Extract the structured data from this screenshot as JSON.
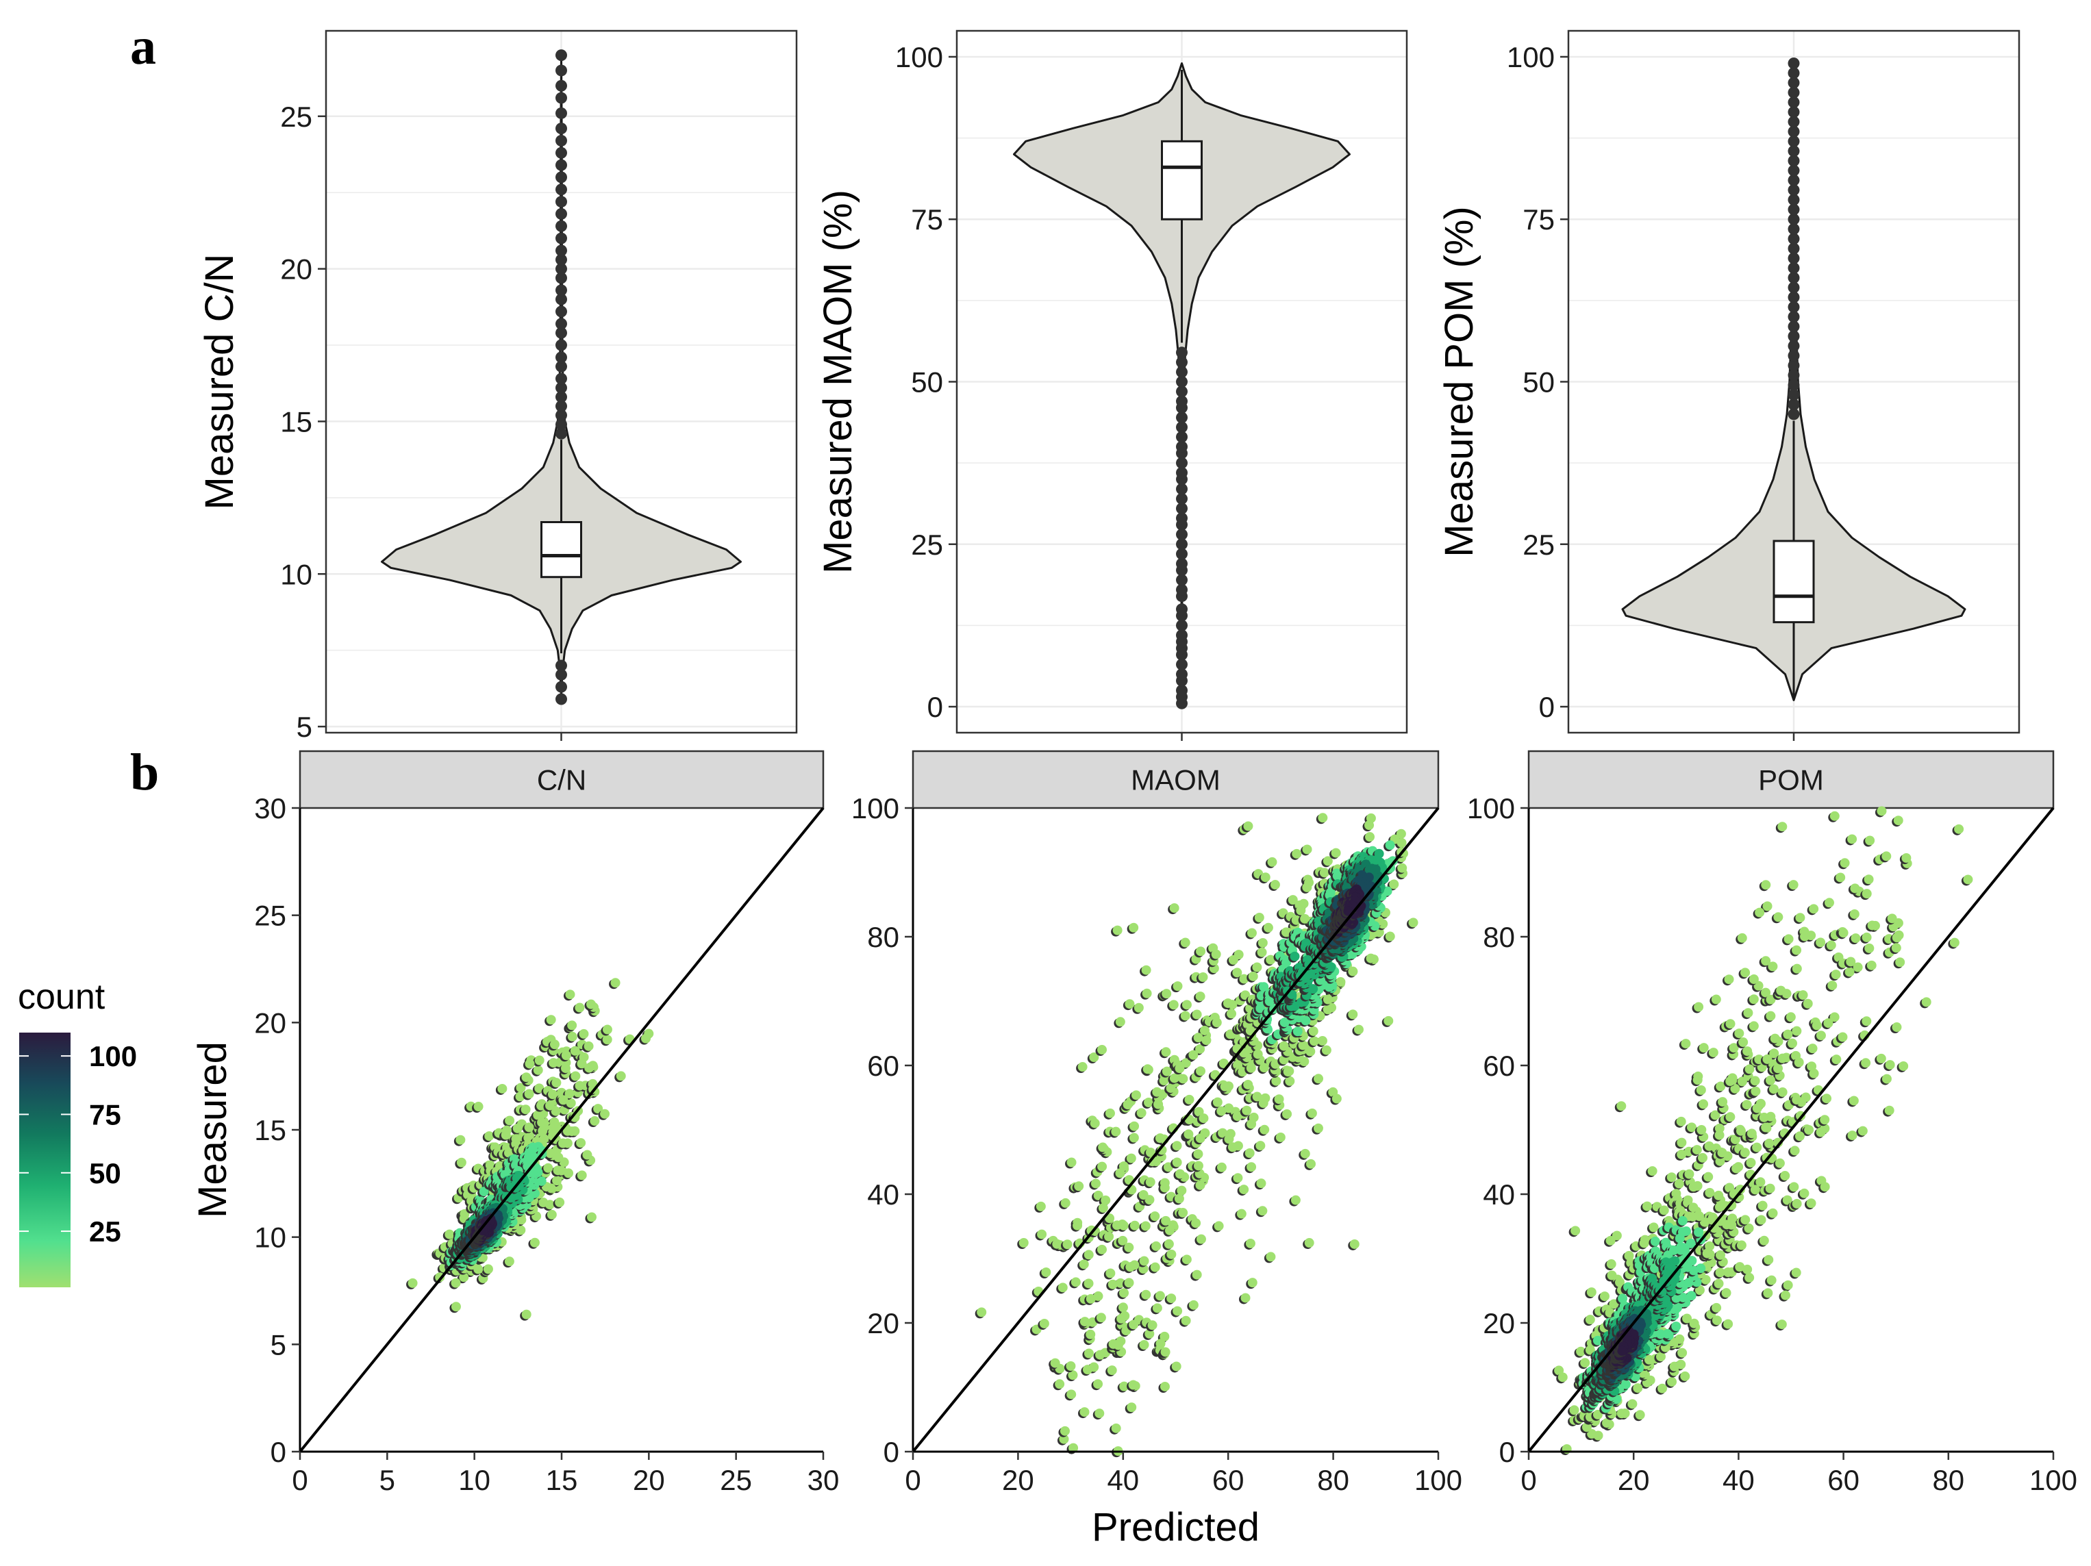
{
  "panel_labels": {
    "a": "a",
    "b": "b"
  },
  "colors": {
    "violin_fill": "#d9d9d2",
    "grid": "#ebebeb",
    "strip_fill": "#d9d9d9",
    "point": "#333333",
    "viridis_light": "#a0e070",
    "viridis_dark": "#2b1b3e"
  },
  "chart_data": [
    {
      "type": "violin",
      "title": "",
      "ylabel": "Measured C/N",
      "ylim": [
        4.8,
        27.8
      ],
      "yticks": [
        5,
        10,
        15,
        20,
        25
      ],
      "ytick_labels": [
        "5",
        "10",
        "15",
        "20",
        "25"
      ],
      "profile": [
        [
          6,
          0.0
        ],
        [
          6.8,
          0.006
        ],
        [
          7.5,
          0.02
        ],
        [
          8.2,
          0.06
        ],
        [
          8.8,
          0.12
        ],
        [
          9.3,
          0.28
        ],
        [
          9.8,
          0.62
        ],
        [
          10.2,
          0.95
        ],
        [
          10.4,
          1.0
        ],
        [
          10.8,
          0.92
        ],
        [
          11.3,
          0.7
        ],
        [
          12,
          0.42
        ],
        [
          12.8,
          0.22
        ],
        [
          13.5,
          0.1
        ],
        [
          14.3,
          0.045
        ],
        [
          15,
          0.02
        ],
        [
          16,
          0.01
        ],
        [
          17.5,
          0.006
        ],
        [
          20,
          0.004
        ],
        [
          24,
          0.003
        ],
        [
          27,
          0
        ]
      ],
      "box": {
        "q1": 9.9,
        "median": 10.6,
        "q3": 11.7,
        "whisker_low": 7.4,
        "whisker_high": 14.4
      },
      "outliers": [
        5.9,
        6.3,
        6.7,
        7.0,
        14.6,
        14.9,
        15.2,
        15.5,
        15.8,
        16.1,
        16.4,
        16.8,
        17.1,
        17.5,
        17.9,
        18.2,
        18.6,
        19.0,
        19.3,
        19.7,
        20.0,
        20.3,
        20.6,
        21.0,
        21.4,
        21.8,
        22.2,
        22.6,
        23.0,
        23.4,
        23.8,
        24.2,
        24.6,
        25.1,
        25.6,
        26.0,
        26.5,
        27.0
      ]
    },
    {
      "type": "violin",
      "title": "",
      "ylabel": "Measured MAOM (%)",
      "ylim": [
        -4,
        104
      ],
      "yticks": [
        0,
        25,
        50,
        75,
        100
      ],
      "ytick_labels": [
        "0",
        "25",
        "50",
        "75",
        "100"
      ],
      "profile": [
        [
          0,
          0
        ],
        [
          25,
          0.003
        ],
        [
          48,
          0.01
        ],
        [
          54,
          0.02
        ],
        [
          58,
          0.035
        ],
        [
          62,
          0.06
        ],
        [
          66,
          0.1
        ],
        [
          70,
          0.18
        ],
        [
          74,
          0.3
        ],
        [
          77,
          0.45
        ],
        [
          80,
          0.68
        ],
        [
          83,
          0.9
        ],
        [
          85,
          1.0
        ],
        [
          87,
          0.93
        ],
        [
          89,
          0.65
        ],
        [
          91,
          0.35
        ],
        [
          93,
          0.14
        ],
        [
          95,
          0.06
        ],
        [
          97,
          0.025
        ],
        [
          99,
          0
        ]
      ],
      "box": {
        "q1": 75,
        "median": 83,
        "q3": 87,
        "whisker_low": 56,
        "whisker_high": 98
      },
      "outliers": [
        0.5,
        1.5,
        2.5,
        4,
        5,
        6.5,
        8,
        9,
        10,
        11,
        12.5,
        14,
        15,
        17,
        18,
        19.5,
        21,
        22,
        23.5,
        25,
        26.5,
        28,
        29,
        30.5,
        32,
        33.5,
        35,
        36,
        37.5,
        39,
        40,
        41.5,
        43,
        44.5,
        46,
        47,
        48.5,
        50,
        51.5,
        53,
        54.5
      ]
    },
    {
      "type": "violin",
      "title": "",
      "ylabel": "Measured POM (%)",
      "ylim": [
        -4,
        104
      ],
      "yticks": [
        0,
        25,
        50,
        75,
        100
      ],
      "ytick_labels": [
        "0",
        "25",
        "50",
        "75",
        "100"
      ],
      "profile": [
        [
          1,
          0
        ],
        [
          5,
          0.05
        ],
        [
          9,
          0.22
        ],
        [
          12,
          0.7
        ],
        [
          14,
          0.98
        ],
        [
          15,
          1.0
        ],
        [
          17,
          0.9
        ],
        [
          20,
          0.68
        ],
        [
          23,
          0.5
        ],
        [
          26,
          0.34
        ],
        [
          30,
          0.2
        ],
        [
          35,
          0.12
        ],
        [
          40,
          0.07
        ],
        [
          45,
          0.04
        ],
        [
          50,
          0.025
        ],
        [
          60,
          0.012
        ],
        [
          75,
          0.008
        ],
        [
          90,
          0.005
        ],
        [
          99,
          0
        ]
      ],
      "box": {
        "q1": 13,
        "median": 17,
        "q3": 25.5,
        "whisker_low": 1,
        "whisker_high": 44
      },
      "outliers": [
        45,
        46.5,
        48,
        49.5,
        51,
        52.5,
        54,
        55.5,
        57,
        58.5,
        60,
        61.5,
        63,
        64.5,
        66,
        67.5,
        69,
        70.5,
        72,
        73.5,
        75,
        76.5,
        78,
        79.5,
        81,
        82.5,
        84,
        85.5,
        87,
        88.5,
        90,
        91.5,
        93,
        94.5,
        96,
        97.5,
        99
      ]
    },
    {
      "type": "scatter",
      "title": "C/N",
      "xlabel": "",
      "ylabel": "Measured",
      "xlim": [
        0,
        30
      ],
      "ylim": [
        0,
        30
      ],
      "xticks": [
        0,
        5,
        10,
        15,
        20,
        25,
        30
      ],
      "xtick_labels": [
        "0",
        "5",
        "10",
        "15",
        "20",
        "25",
        "30"
      ],
      "yticks": [
        0,
        5,
        10,
        15,
        20,
        25,
        30
      ],
      "ytick_labels": [
        "0",
        "5",
        "10",
        "15",
        "20",
        "25",
        "30"
      ],
      "reference_line": [
        [
          0,
          0
        ],
        [
          30,
          30
        ]
      ],
      "clusters": [
        {
          "cx": 10.5,
          "cy": 10.3,
          "sx": 1.0,
          "sy": 0.9,
          "rho": 0.75,
          "n": 260,
          "dense": 1.0
        },
        {
          "cx": 12.0,
          "cy": 12.0,
          "sx": 1.6,
          "sy": 1.6,
          "rho": 0.7,
          "n": 300,
          "dense": 0.4
        },
        {
          "cx": 14.0,
          "cy": 15.5,
          "sx": 2.0,
          "sy": 2.6,
          "rho": 0.55,
          "n": 170,
          "dense": 0.0
        }
      ]
    },
    {
      "type": "scatter",
      "title": "MAOM",
      "xlabel": "Predicted",
      "ylabel": "",
      "xlim": [
        0,
        100
      ],
      "ylim": [
        0,
        100
      ],
      "xticks": [
        0,
        20,
        40,
        60,
        80,
        100
      ],
      "xtick_labels": [
        "0",
        "20",
        "40",
        "60",
        "80",
        "100"
      ],
      "yticks": [
        0,
        20,
        40,
        60,
        80,
        100
      ],
      "ytick_labels": [
        "0",
        "20",
        "40",
        "60",
        "80",
        "100"
      ],
      "reference_line": [
        [
          0,
          0
        ],
        [
          100,
          100
        ]
      ],
      "clusters": [
        {
          "cx": 83,
          "cy": 84,
          "sx": 4.5,
          "sy": 6,
          "rho": 0.7,
          "n": 380,
          "dense": 1.0
        },
        {
          "cx": 74,
          "cy": 74,
          "sx": 6,
          "sy": 7,
          "rho": 0.6,
          "n": 300,
          "dense": 0.45
        },
        {
          "cx": 55,
          "cy": 55,
          "sx": 14,
          "sy": 18,
          "rho": 0.55,
          "n": 330,
          "dense": 0.0
        },
        {
          "cx": 38,
          "cy": 22,
          "sx": 7,
          "sy": 10,
          "rho": 0.3,
          "n": 90,
          "dense": 0.0
        }
      ]
    },
    {
      "type": "scatter",
      "title": "POM",
      "xlabel": "",
      "ylabel": "",
      "xlim": [
        0,
        100
      ],
      "ylim": [
        0,
        100
      ],
      "xticks": [
        0,
        20,
        40,
        60,
        80,
        100
      ],
      "xtick_labels": [
        "0",
        "20",
        "40",
        "60",
        "80",
        "100"
      ],
      "yticks": [
        0,
        20,
        40,
        60,
        80,
        100
      ],
      "ytick_labels": [
        "0",
        "20",
        "40",
        "60",
        "80",
        "100"
      ],
      "reference_line": [
        [
          0,
          0
        ],
        [
          100,
          100
        ]
      ],
      "clusters": [
        {
          "cx": 18,
          "cy": 16,
          "sx": 4,
          "sy": 5,
          "rho": 0.7,
          "n": 380,
          "dense": 1.0
        },
        {
          "cx": 25,
          "cy": 25,
          "sx": 6,
          "sy": 8,
          "rho": 0.6,
          "n": 320,
          "dense": 0.4
        },
        {
          "cx": 42,
          "cy": 48,
          "sx": 12,
          "sy": 16,
          "rho": 0.55,
          "n": 260,
          "dense": 0.0
        },
        {
          "cx": 60,
          "cy": 80,
          "sx": 10,
          "sy": 10,
          "rho": 0.3,
          "n": 70,
          "dense": 0.0
        }
      ]
    }
  ],
  "legend": {
    "title": "count",
    "ticks": [
      {
        "value": 100,
        "label": "100"
      },
      {
        "value": 75,
        "label": "75"
      },
      {
        "value": 50,
        "label": "50"
      },
      {
        "value": 25,
        "label": "25"
      }
    ],
    "range": [
      1,
      110
    ]
  }
}
